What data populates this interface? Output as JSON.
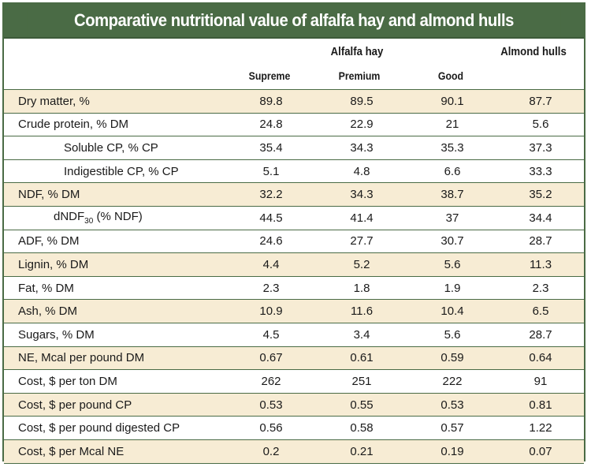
{
  "title": "Comparative nutritional value of alfalfa hay and almond hulls",
  "header": {
    "group_alfalfa": "Alfalfa hay",
    "group_almond": "Almond hulls",
    "sub_columns": [
      "Supreme",
      "Premium",
      "Good"
    ]
  },
  "rows": [
    {
      "label": "Dry matter, %",
      "values": [
        "89.8",
        "89.5",
        "90.1",
        "87.7"
      ],
      "shaded": true
    },
    {
      "label": "Crude protein, % DM",
      "values": [
        "24.8",
        "22.9",
        "21",
        "5.6"
      ],
      "shaded": false
    },
    {
      "label": "Soluble CP, % CP",
      "values": [
        "35.4",
        "34.3",
        "35.3",
        "37.3"
      ],
      "shaded": false
    },
    {
      "label": "Indigestible CP, % CP",
      "values": [
        "5.1",
        "4.8",
        "6.6",
        "33.3"
      ],
      "shaded": false
    },
    {
      "label": "NDF, % DM",
      "values": [
        "32.2",
        "34.3",
        "38.7",
        "35.2"
      ],
      "shaded": true
    },
    {
      "label_pre": "dNDF",
      "label_sub": "30",
      "label_post": " (% NDF)",
      "values": [
        "44.5",
        "41.4",
        "37",
        "34.4"
      ],
      "shaded": false
    },
    {
      "label": "ADF, % DM",
      "values": [
        "24.6",
        "27.7",
        "30.7",
        "28.7"
      ],
      "shaded": false
    },
    {
      "label": "Lignin, % DM",
      "values": [
        "4.4",
        "5.2",
        "5.6",
        "11.3"
      ],
      "shaded": true
    },
    {
      "label": "Fat, % DM",
      "values": [
        "2.3",
        "1.8",
        "1.9",
        "2.3"
      ],
      "shaded": false
    },
    {
      "label": "Ash, % DM",
      "values": [
        "10.9",
        "11.6",
        "10.4",
        "6.5"
      ],
      "shaded": true
    },
    {
      "label": "Sugars, % DM",
      "values": [
        "4.5",
        "3.4",
        "5.6",
        "28.7"
      ],
      "shaded": false
    },
    {
      "label": "NE, Mcal per pound DM",
      "values": [
        "0.67",
        "0.61",
        "0.59",
        "0.64"
      ],
      "shaded": true
    },
    {
      "label": "Cost, $ per ton DM",
      "values": [
        "262",
        "251",
        "222",
        "91"
      ],
      "shaded": false
    },
    {
      "label": "Cost, $ per pound CP",
      "values": [
        "0.53",
        "0.55",
        "0.53",
        "0.81"
      ],
      "shaded": true
    },
    {
      "label": "Cost, $ per pound digested CP",
      "values": [
        "0.56",
        "0.58",
        "0.57",
        "1.22"
      ],
      "shaded": false
    },
    {
      "label": "Cost, $ per Mcal NE",
      "values": [
        "0.2",
        "0.21",
        "0.19",
        "0.07"
      ],
      "shaded": true
    }
  ],
  "colors": {
    "header_bg": "#4a6b45",
    "shade": "#f7ecd4",
    "rule": "#4a6b45"
  }
}
